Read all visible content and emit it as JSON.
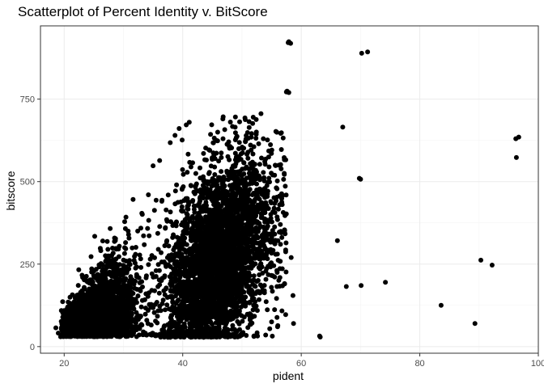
{
  "chart_data": {
    "type": "scatter",
    "title": "Scatterplot of Percent Identity v. BitScore",
    "xlabel": "pident",
    "ylabel": "bitscore",
    "xlim": [
      16.0,
      100.0
    ],
    "ylim": [
      -20.0,
      972.0
    ],
    "x_ticks": [
      20,
      40,
      60,
      80,
      100
    ],
    "x_tick_labels": [
      "20",
      "40",
      "60",
      "80",
      "100"
    ],
    "y_ticks": [
      0,
      250,
      500,
      750
    ],
    "y_tick_labels": [
      "0",
      "250",
      "500",
      "750"
    ],
    "grid": true,
    "legend": "none",
    "colors": {
      "point": "#000000",
      "panel_border": "#333333",
      "grid_major": "#ebebeb",
      "grid_minor": "#f5f5f5",
      "tick_label": "#4d4d4d"
    },
    "points": [
      {
        "x": 57.9,
        "y": 924
      },
      {
        "x": 58.2,
        "y": 919
      },
      {
        "x": 57.8,
        "y": 921
      },
      {
        "x": 70.2,
        "y": 889
      },
      {
        "x": 71.2,
        "y": 893
      },
      {
        "x": 57.5,
        "y": 772
      },
      {
        "x": 57.9,
        "y": 770
      },
      {
        "x": 57.6,
        "y": 774
      },
      {
        "x": 67.0,
        "y": 665
      },
      {
        "x": 96.2,
        "y": 630
      },
      {
        "x": 96.7,
        "y": 635
      },
      {
        "x": 96.3,
        "y": 573
      },
      {
        "x": 69.8,
        "y": 510
      },
      {
        "x": 70.0,
        "y": 507
      },
      {
        "x": 66.1,
        "y": 321
      },
      {
        "x": 90.3,
        "y": 262
      },
      {
        "x": 92.2,
        "y": 247
      },
      {
        "x": 67.6,
        "y": 182
      },
      {
        "x": 70.1,
        "y": 185
      },
      {
        "x": 74.2,
        "y": 195
      },
      {
        "x": 83.6,
        "y": 125
      },
      {
        "x": 89.3,
        "y": 70
      },
      {
        "x": 63.1,
        "y": 32
      },
      {
        "x": 63.2,
        "y": 29
      },
      {
        "x": 58.7,
        "y": 70
      },
      {
        "x": 58.6,
        "y": 155
      },
      {
        "x": 58.3,
        "y": 270
      },
      {
        "x": 56.8,
        "y": 236
      },
      {
        "x": 56.5,
        "y": 310
      },
      {
        "x": 56.0,
        "y": 385
      },
      {
        "x": 55.2,
        "y": 520
      },
      {
        "x": 54.8,
        "y": 612
      },
      {
        "x": 54.2,
        "y": 488
      },
      {
        "x": 53.2,
        "y": 706
      },
      {
        "x": 52.4,
        "y": 688
      },
      {
        "x": 51.8,
        "y": 676
      },
      {
        "x": 50.5,
        "y": 693
      },
      {
        "x": 49.6,
        "y": 681
      },
      {
        "x": 48.4,
        "y": 667
      },
      {
        "x": 45.9,
        "y": 650
      },
      {
        "x": 44.7,
        "y": 643
      },
      {
        "x": 46.8,
        "y": 630
      },
      {
        "x": 41.1,
        "y": 680
      },
      {
        "x": 40.6,
        "y": 672
      },
      {
        "x": 39.4,
        "y": 661
      },
      {
        "x": 38.7,
        "y": 640
      },
      {
        "x": 37.9,
        "y": 618
      },
      {
        "x": 39.9,
        "y": 626
      },
      {
        "x": 36.1,
        "y": 564
      },
      {
        "x": 35.0,
        "y": 548
      },
      {
        "x": 34.2,
        "y": 460
      },
      {
        "x": 32.4,
        "y": 350
      },
      {
        "x": 33.1,
        "y": 404
      },
      {
        "x": 31.0,
        "y": 250
      },
      {
        "x": 30.2,
        "y": 300
      },
      {
        "x": 29.0,
        "y": 226
      },
      {
        "x": 27.5,
        "y": 186
      },
      {
        "x": 26.0,
        "y": 150
      },
      {
        "x": 24.5,
        "y": 131
      },
      {
        "x": 22.5,
        "y": 92
      },
      {
        "x": 21.2,
        "y": 72
      },
      {
        "x": 20.1,
        "y": 44
      },
      {
        "x": 19.0,
        "y": 41
      },
      {
        "x": 18.6,
        "y": 57
      },
      {
        "x": 19.4,
        "y": 30
      },
      {
        "x": 54.0,
        "y": 35
      },
      {
        "x": 56.0,
        "y": 60
      },
      {
        "x": 55.5,
        "y": 112
      },
      {
        "x": 57.2,
        "y": 190
      }
    ],
    "dense_region": {
      "description_free": true,
      "count": 6200,
      "x_range": [
        19.5,
        57.5
      ],
      "y_range": [
        28,
        700
      ],
      "components": [
        {
          "weight": 0.42,
          "x_center": 25.5,
          "x_spread": 3.2,
          "y_base": 30,
          "y_slope": 11.5,
          "y_scatter": 45
        },
        {
          "weight": 0.58,
          "x_center": 46.0,
          "x_spread": 4.6,
          "y_base": 60,
          "y_slope": 6.2,
          "y_scatter": 140
        }
      ]
    }
  }
}
